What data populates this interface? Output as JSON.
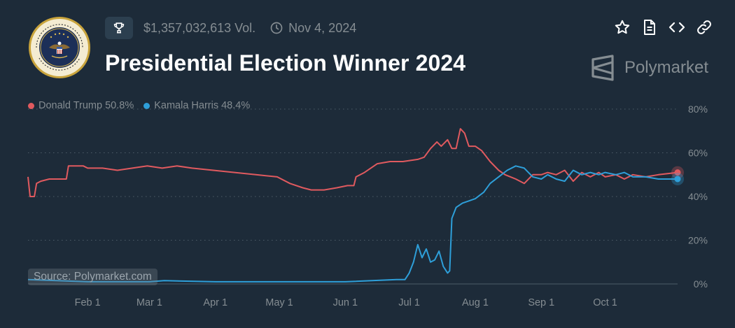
{
  "header": {
    "volume": "$1,357,032,613 Vol.",
    "date": "Nov 4, 2024",
    "title": "Presidential Election Winner 2024",
    "brand": "Polymarket",
    "seal_icon": "presidential-seal-icon",
    "trophy_icon": "trophy-icon",
    "clock_icon": "clock-icon"
  },
  "toolbar": {
    "icons": [
      "star-icon",
      "document-icon",
      "code-icon",
      "link-icon"
    ]
  },
  "source_label": "Source: Polymarket.com",
  "colors": {
    "background": "#1d2b39",
    "trump": "#e05a5f",
    "harris": "#2e9fd9",
    "muted_text": "#858d92"
  },
  "chart_data": {
    "type": "line",
    "x_ticks": [
      "Feb 1",
      "Mar 1",
      "Apr 1",
      "May 1",
      "Jun 1",
      "Jul 1",
      "Aug 1",
      "Sep 1",
      "Oct 1"
    ],
    "y_ticks": [
      "80%",
      "60%",
      "40%",
      "20%",
      "0%"
    ],
    "ylim": [
      0,
      80
    ],
    "xlim": [
      "2024-01-04",
      "2024-11-04"
    ],
    "grid": "horizontal-dotted",
    "legend": "top-left",
    "series": [
      {
        "name": "Donald Trump",
        "legend_label": "Donald Trump 50.8%",
        "color": "#e05a5f",
        "points": [
          [
            "2024-01-04",
            49
          ],
          [
            "2024-01-05",
            40
          ],
          [
            "2024-01-07",
            40
          ],
          [
            "2024-01-08",
            46
          ],
          [
            "2024-01-10",
            47
          ],
          [
            "2024-01-14",
            48
          ],
          [
            "2024-01-22",
            48
          ],
          [
            "2024-01-23",
            54
          ],
          [
            "2024-01-30",
            54
          ],
          [
            "2024-02-01",
            53
          ],
          [
            "2024-02-08",
            53
          ],
          [
            "2024-02-15",
            52
          ],
          [
            "2024-02-22",
            53
          ],
          [
            "2024-02-29",
            54
          ],
          [
            "2024-03-07",
            53
          ],
          [
            "2024-03-14",
            54
          ],
          [
            "2024-03-21",
            53
          ],
          [
            "2024-03-31",
            52
          ],
          [
            "2024-04-10",
            51
          ],
          [
            "2024-04-20",
            50
          ],
          [
            "2024-04-30",
            49
          ],
          [
            "2024-05-06",
            46
          ],
          [
            "2024-05-12",
            44
          ],
          [
            "2024-05-16",
            43
          ],
          [
            "2024-05-22",
            43
          ],
          [
            "2024-05-28",
            44
          ],
          [
            "2024-06-02",
            45
          ],
          [
            "2024-06-05",
            45
          ],
          [
            "2024-06-06",
            49
          ],
          [
            "2024-06-10",
            51
          ],
          [
            "2024-06-16",
            55
          ],
          [
            "2024-06-22",
            56
          ],
          [
            "2024-06-28",
            56
          ],
          [
            "2024-07-05",
            57
          ],
          [
            "2024-07-08",
            58
          ],
          [
            "2024-07-11",
            62
          ],
          [
            "2024-07-14",
            65
          ],
          [
            "2024-07-16",
            63
          ],
          [
            "2024-07-19",
            66
          ],
          [
            "2024-07-21",
            62
          ],
          [
            "2024-07-23",
            62
          ],
          [
            "2024-07-25",
            71
          ],
          [
            "2024-07-27",
            69
          ],
          [
            "2024-07-29",
            63
          ],
          [
            "2024-08-01",
            63
          ],
          [
            "2024-08-04",
            61
          ],
          [
            "2024-08-08",
            56
          ],
          [
            "2024-08-12",
            52
          ],
          [
            "2024-08-15",
            50
          ],
          [
            "2024-08-20",
            48
          ],
          [
            "2024-08-24",
            46
          ],
          [
            "2024-08-28",
            50
          ],
          [
            "2024-09-01",
            50
          ],
          [
            "2024-09-04",
            51
          ],
          [
            "2024-09-08",
            50
          ],
          [
            "2024-09-12",
            52
          ],
          [
            "2024-09-16",
            47
          ],
          [
            "2024-09-20",
            51
          ],
          [
            "2024-09-24",
            49
          ],
          [
            "2024-09-28",
            51
          ],
          [
            "2024-10-01",
            49
          ],
          [
            "2024-10-06",
            50
          ],
          [
            "2024-10-10",
            48
          ],
          [
            "2024-10-14",
            50
          ],
          [
            "2024-10-20",
            49
          ],
          [
            "2024-10-26",
            50
          ],
          [
            "2024-11-04",
            51
          ]
        ]
      },
      {
        "name": "Kamala Harris",
        "legend_label": "Kamala Harris 48.4%",
        "color": "#2e9fd9",
        "points": [
          [
            "2024-01-04",
            2
          ],
          [
            "2024-02-01",
            1
          ],
          [
            "2024-03-01",
            1
          ],
          [
            "2024-03-08",
            1.5
          ],
          [
            "2024-04-01",
            1
          ],
          [
            "2024-05-01",
            1
          ],
          [
            "2024-06-01",
            1
          ],
          [
            "2024-06-25",
            2
          ],
          [
            "2024-06-29",
            2
          ],
          [
            "2024-07-01",
            5
          ],
          [
            "2024-07-03",
            10
          ],
          [
            "2024-07-05",
            18
          ],
          [
            "2024-07-07",
            12
          ],
          [
            "2024-07-09",
            16
          ],
          [
            "2024-07-11",
            10
          ],
          [
            "2024-07-13",
            11
          ],
          [
            "2024-07-15",
            15
          ],
          [
            "2024-07-17",
            8
          ],
          [
            "2024-07-19",
            5
          ],
          [
            "2024-07-20",
            6
          ],
          [
            "2024-07-21",
            30
          ],
          [
            "2024-07-23",
            35
          ],
          [
            "2024-07-26",
            37
          ],
          [
            "2024-07-29",
            38
          ],
          [
            "2024-08-01",
            39
          ],
          [
            "2024-08-05",
            42
          ],
          [
            "2024-08-08",
            46
          ],
          [
            "2024-08-12",
            49
          ],
          [
            "2024-08-16",
            52
          ],
          [
            "2024-08-20",
            54
          ],
          [
            "2024-08-24",
            53
          ],
          [
            "2024-08-28",
            49
          ],
          [
            "2024-09-01",
            48
          ],
          [
            "2024-09-04",
            50
          ],
          [
            "2024-09-08",
            48
          ],
          [
            "2024-09-12",
            47
          ],
          [
            "2024-09-16",
            52
          ],
          [
            "2024-09-20",
            50
          ],
          [
            "2024-09-24",
            51
          ],
          [
            "2024-09-28",
            50
          ],
          [
            "2024-10-01",
            51
          ],
          [
            "2024-10-06",
            50
          ],
          [
            "2024-10-10",
            51
          ],
          [
            "2024-10-14",
            49
          ],
          [
            "2024-10-20",
            49
          ],
          [
            "2024-10-26",
            48
          ],
          [
            "2024-11-04",
            48
          ]
        ]
      }
    ]
  }
}
